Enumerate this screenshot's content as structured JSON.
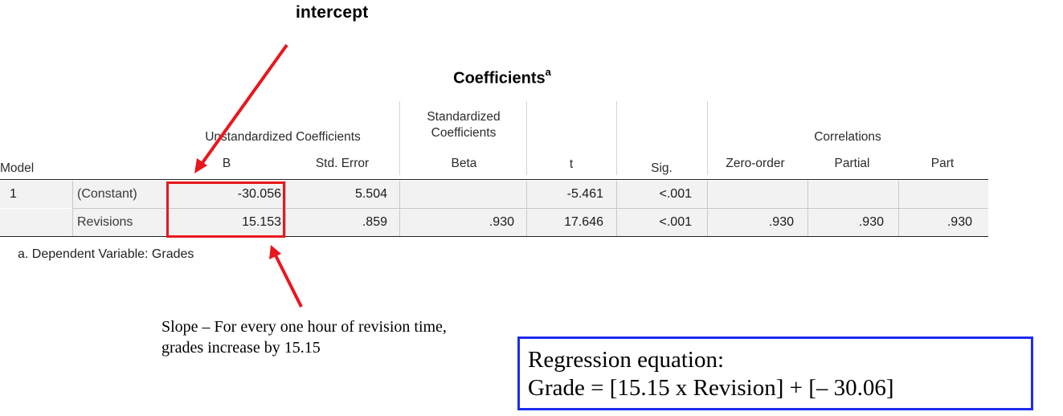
{
  "annotations": {
    "intercept_label": "intercept",
    "slope_note": "Slope – For every one hour of revision time, grades increase by 15.15"
  },
  "table": {
    "title": "Coefficients",
    "title_superscript": "a",
    "group_headers": {
      "unstandardized": "Unstandardized Coefficients",
      "standardized": "Standardized Coefficients",
      "correlations": "Correlations"
    },
    "columns": {
      "model": "Model",
      "b": "B",
      "std_error": "Std. Error",
      "beta": "Beta",
      "t": "t",
      "sig": "Sig.",
      "zero_order": "Zero-order",
      "partial": "Partial",
      "part": "Part"
    },
    "rows": [
      {
        "model": "1",
        "label": "(Constant)",
        "b": "-30.056",
        "std_error": "5.504",
        "beta": "",
        "t": "-5.461",
        "sig": "<.001",
        "zero_order": "",
        "partial": "",
        "part": ""
      },
      {
        "model": "",
        "label": "Revisions",
        "b": "15.153",
        "std_error": ".859",
        "beta": ".930",
        "t": "17.646",
        "sig": "<.001",
        "zero_order": ".930",
        "partial": ".930",
        "part": ".930"
      }
    ],
    "footnote": "a. Dependent Variable: Grades"
  },
  "equation": {
    "line1": "Regression equation:",
    "line2": "Grade = [15.15 x Revision] + [– 30.06]"
  },
  "colors": {
    "arrow_red": "#e8171d",
    "equation_border_blue": "#1d2bf0",
    "row_shade": "#f2f2f2"
  }
}
